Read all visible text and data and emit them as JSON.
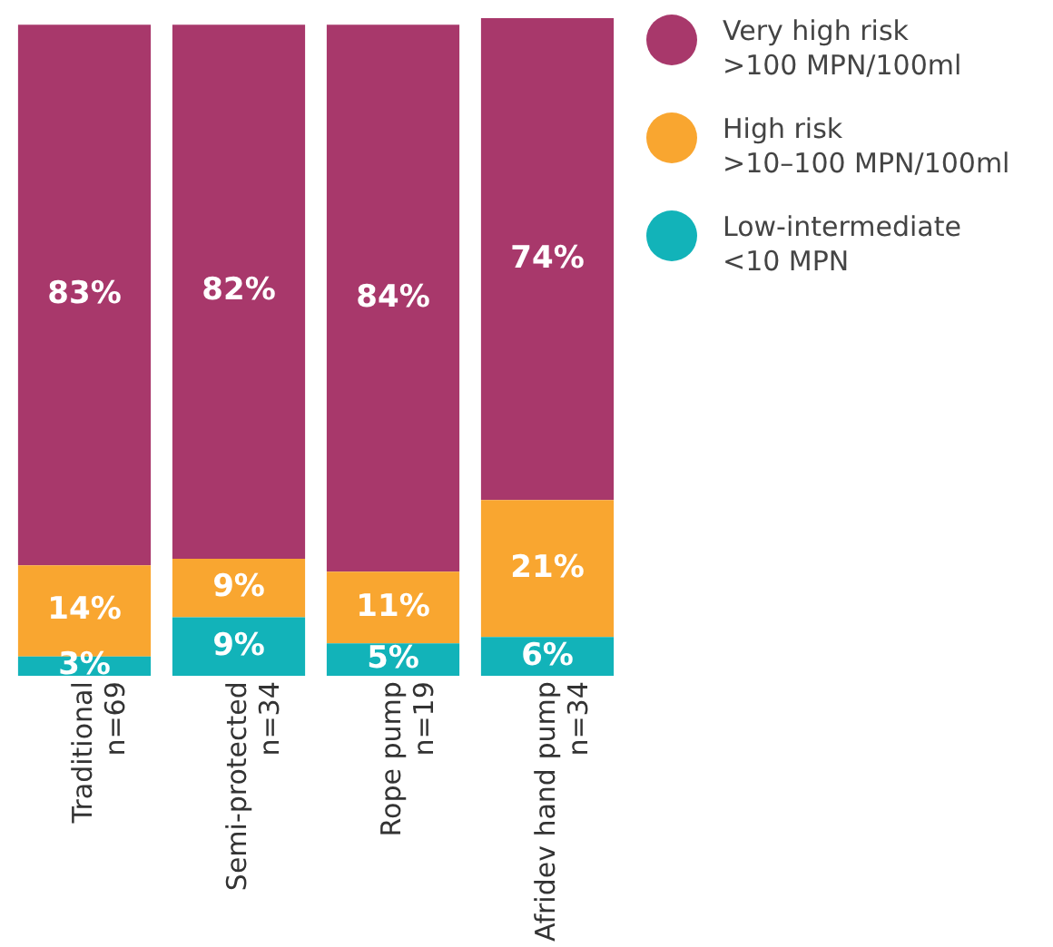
{
  "chart_data": {
    "type": "bar",
    "stacked": true,
    "categories": [
      "Traditional\nn=69",
      "Semi-protected\nn=34",
      "Rope pump\nn=19",
      "Afridev hand pump\nn=34"
    ],
    "series": [
      {
        "name": "Low-intermediate\n<10 MPN",
        "color": "#12b3b9",
        "values": [
          3,
          9,
          5,
          6
        ],
        "value_labels": [
          "3%",
          "9%",
          "5%",
          "6%"
        ]
      },
      {
        "name": "High risk\n>10–100 MPN/100ml",
        "color": "#f9a630",
        "values": [
          14,
          9,
          11,
          21
        ],
        "value_labels": [
          "14%",
          "9%",
          "11%",
          "21%"
        ]
      },
      {
        "name": "Very high risk\n>100 MPN/100ml",
        "color": "#a8386b",
        "values": [
          83,
          82,
          84,
          74
        ],
        "value_labels": [
          "83%",
          "82%",
          "84%",
          "74%"
        ]
      }
    ],
    "grid": false,
    "legend": "top right",
    "tick_labels": "x"
  }
}
